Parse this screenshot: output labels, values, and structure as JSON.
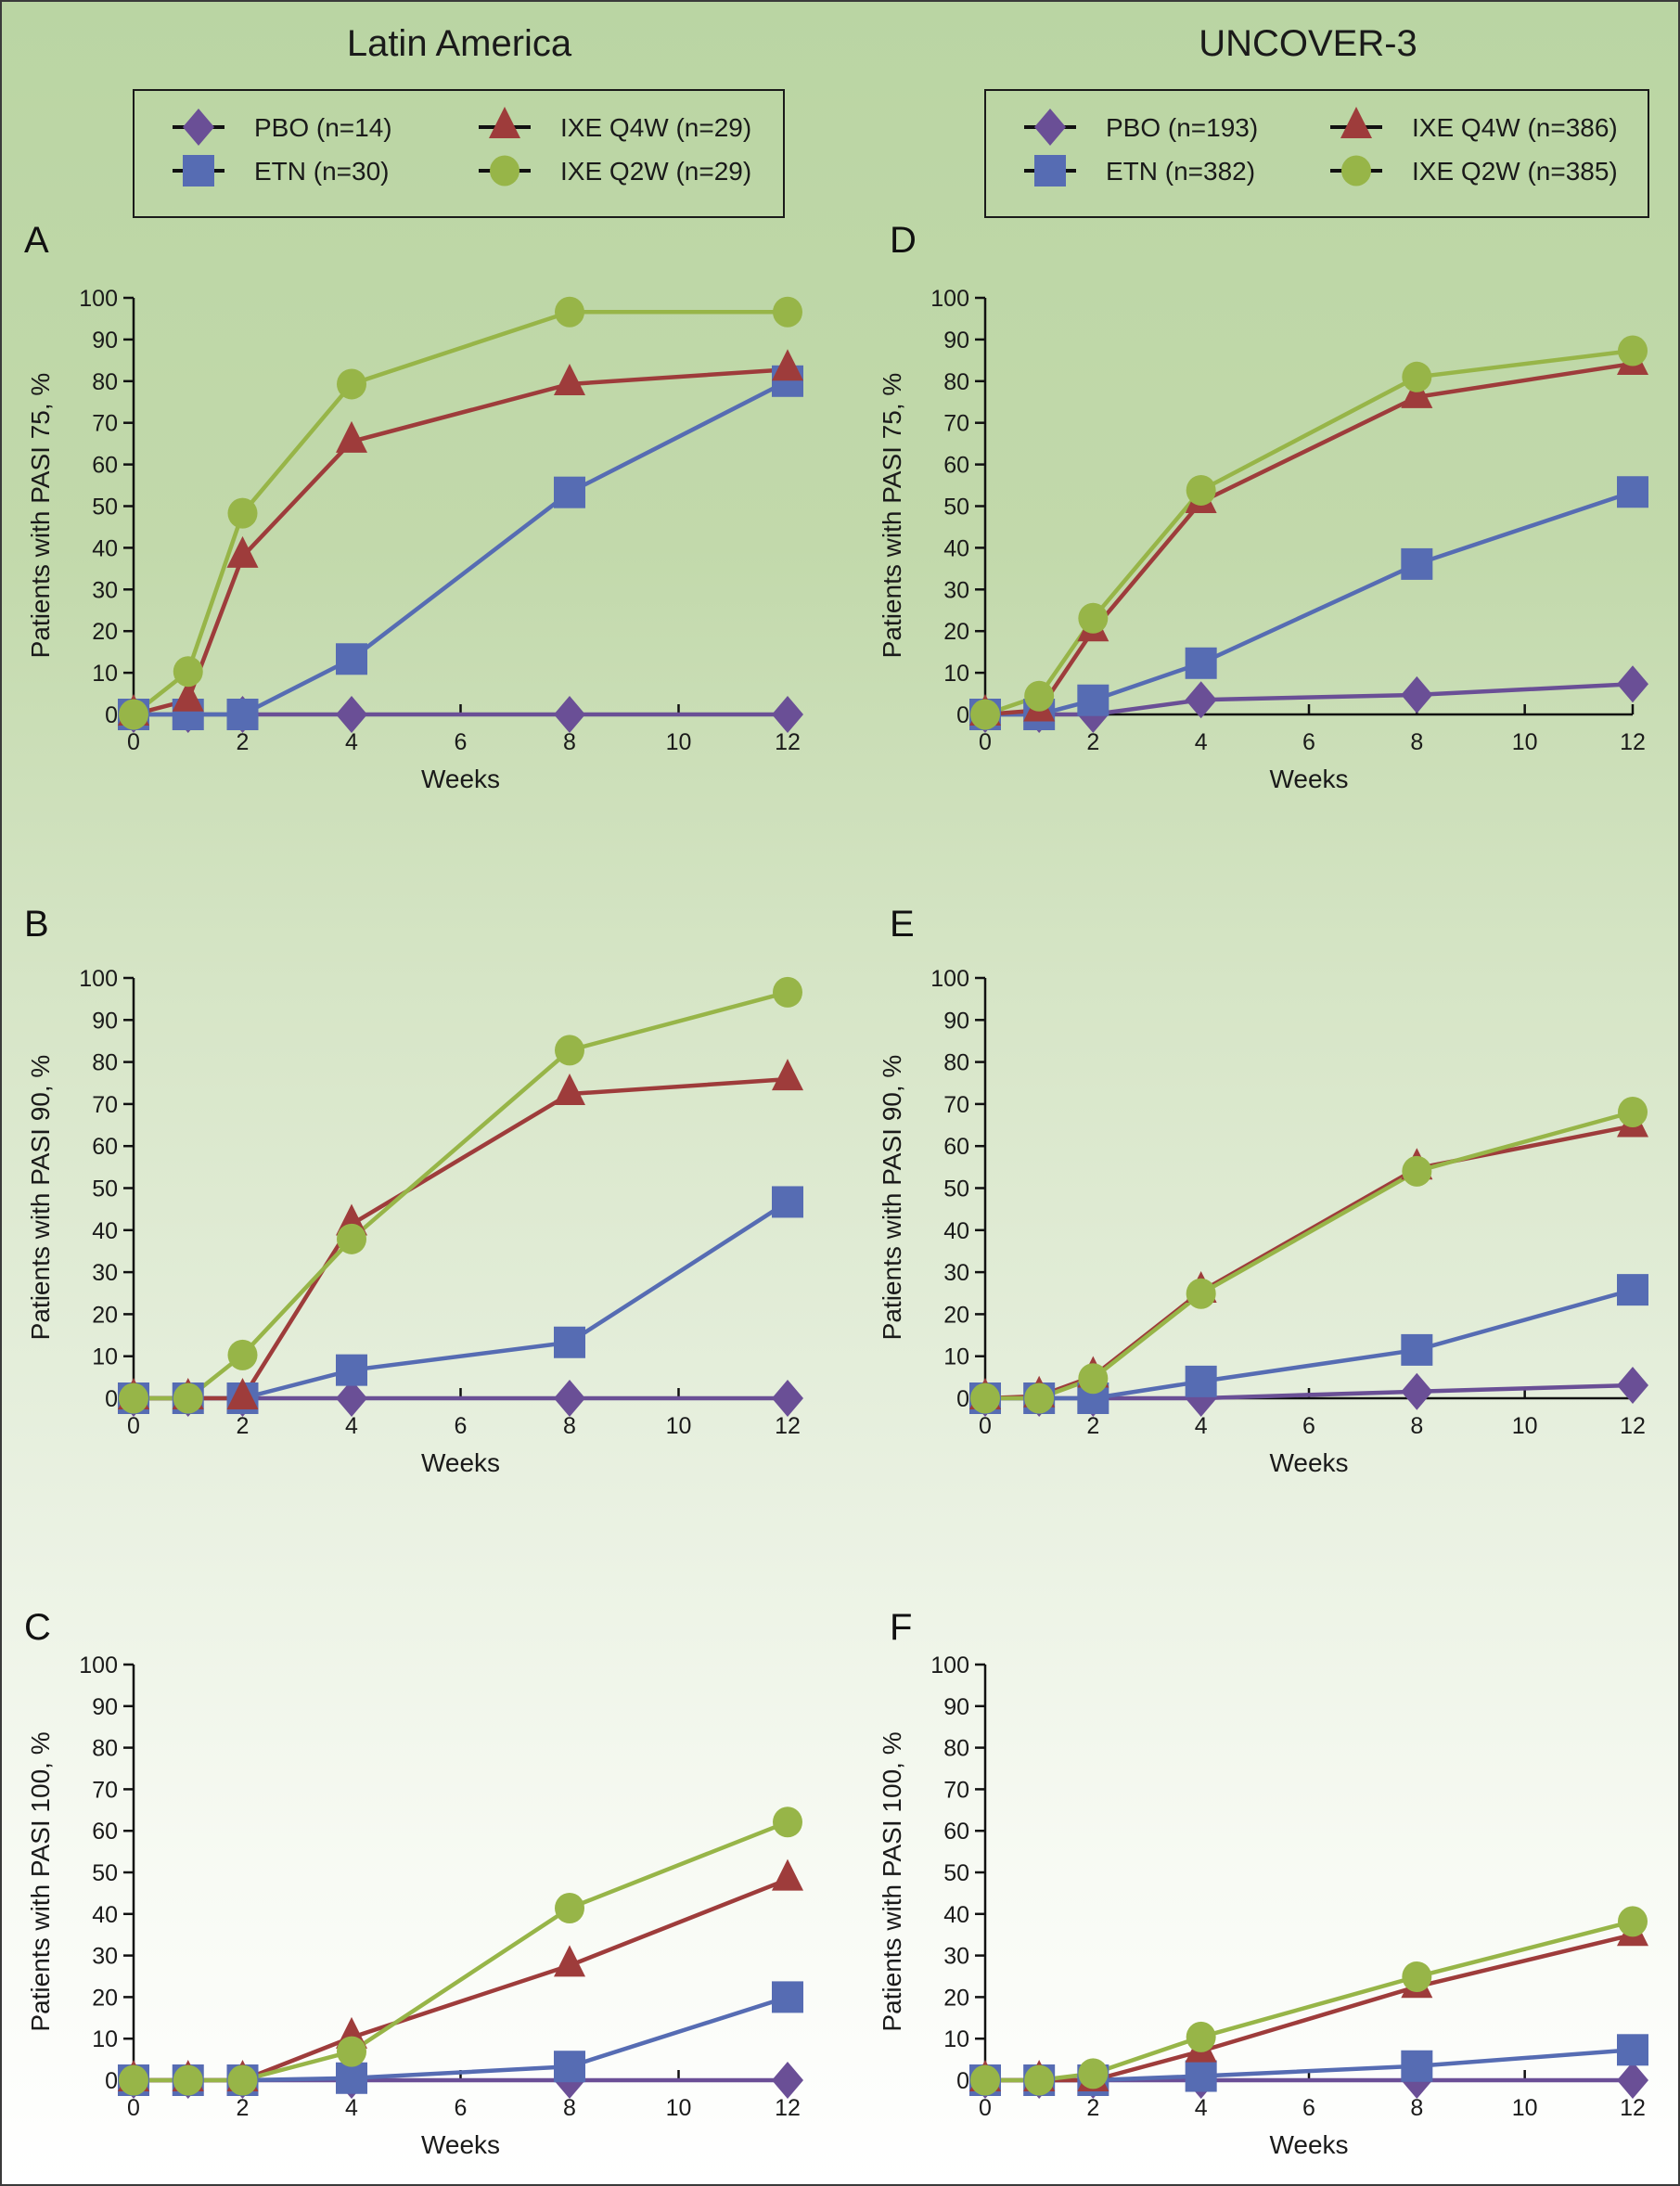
{
  "column_titles": [
    "Latin America",
    "UNCOVER-3"
  ],
  "legends": [
    {
      "items": [
        {
          "series": "PBO",
          "label": "PBO (n=14)"
        },
        {
          "series": "ETN",
          "label": "ETN (n=30)"
        },
        {
          "series": "IXE_Q4W",
          "label": "IXE Q4W (n=29)"
        },
        {
          "series": "IXE_Q2W",
          "label": "IXE Q2W (n=29)"
        }
      ]
    },
    {
      "items": [
        {
          "series": "PBO",
          "label": "PBO (n=193)"
        },
        {
          "series": "ETN",
          "label": "ETN (n=382)"
        },
        {
          "series": "IXE_Q4W",
          "label": "IXE Q4W (n=386)"
        },
        {
          "series": "IXE_Q2W",
          "label": "IXE Q2W (n=385)"
        }
      ]
    }
  ],
  "series_style": {
    "PBO": {
      "color": "#6a4f96",
      "marker": "diamond"
    },
    "ETN": {
      "color": "#566cb3",
      "marker": "square"
    },
    "IXE_Q4W": {
      "color": "#9e3c3b",
      "marker": "triangle"
    },
    "IXE_Q2W": {
      "color": "#97b548",
      "marker": "circle"
    }
  },
  "chart_data": [
    {
      "panel": "A",
      "type": "line",
      "column": "Latin America",
      "xlabel": "Weeks",
      "ylabel": "Patients with PASI 75, %",
      "xlim": [
        0,
        12
      ],
      "ylim": [
        0,
        100
      ],
      "xticks": [
        0,
        2,
        4,
        6,
        8,
        10,
        12
      ],
      "yticks": [
        0,
        10,
        20,
        30,
        40,
        50,
        60,
        70,
        80,
        90,
        100
      ],
      "series": [
        {
          "name": "PBO",
          "x": [
            0,
            1,
            2,
            4,
            8,
            12
          ],
          "values": [
            0,
            0,
            0,
            0,
            0,
            0
          ]
        },
        {
          "name": "ETN",
          "x": [
            0,
            1,
            2,
            4,
            8,
            12
          ],
          "values": [
            0,
            0,
            0,
            13.3,
            53.3,
            80.0
          ]
        },
        {
          "name": "IXE_Q4W",
          "x": [
            0,
            1,
            2,
            4,
            8,
            12
          ],
          "values": [
            0,
            3.4,
            37.9,
            65.5,
            79.3,
            82.8
          ]
        },
        {
          "name": "IXE_Q2W",
          "x": [
            0,
            1,
            2,
            4,
            8,
            12
          ],
          "values": [
            0,
            10.3,
            48.3,
            79.3,
            96.6,
            96.6
          ]
        }
      ]
    },
    {
      "panel": "B",
      "type": "line",
      "column": "Latin America",
      "xlabel": "Weeks",
      "ylabel": "Patients with PASI 90, %",
      "xlim": [
        0,
        12
      ],
      "ylim": [
        0,
        100
      ],
      "xticks": [
        0,
        2,
        4,
        6,
        8,
        10,
        12
      ],
      "yticks": [
        0,
        10,
        20,
        30,
        40,
        50,
        60,
        70,
        80,
        90,
        100
      ],
      "series": [
        {
          "name": "PBO",
          "x": [
            0,
            1,
            2,
            4,
            8,
            12
          ],
          "values": [
            0,
            0,
            0,
            0,
            0,
            0
          ]
        },
        {
          "name": "ETN",
          "x": [
            0,
            1,
            2,
            4,
            8,
            12
          ],
          "values": [
            0,
            0,
            0,
            6.7,
            13.3,
            46.7
          ]
        },
        {
          "name": "IXE_Q4W",
          "x": [
            0,
            1,
            2,
            4,
            8,
            12
          ],
          "values": [
            0,
            0,
            0,
            41.4,
            72.4,
            75.9
          ]
        },
        {
          "name": "IXE_Q2W",
          "x": [
            0,
            1,
            2,
            4,
            8,
            12
          ],
          "values": [
            0,
            0,
            10.3,
            37.9,
            82.8,
            96.6
          ]
        }
      ]
    },
    {
      "panel": "C",
      "type": "line",
      "column": "Latin America",
      "xlabel": "Weeks",
      "ylabel": "Patients with PASI 100, %",
      "xlim": [
        0,
        12
      ],
      "ylim": [
        0,
        100
      ],
      "xticks": [
        0,
        2,
        4,
        6,
        8,
        10,
        12
      ],
      "yticks": [
        0,
        10,
        20,
        30,
        40,
        50,
        60,
        70,
        80,
        90,
        100
      ],
      "series": [
        {
          "name": "PBO",
          "x": [
            0,
            1,
            2,
            4,
            8,
            12
          ],
          "values": [
            0,
            0,
            0,
            0,
            0,
            0
          ]
        },
        {
          "name": "ETN",
          "x": [
            0,
            1,
            2,
            4,
            8,
            12
          ],
          "values": [
            0,
            0,
            0,
            0.5,
            3.3,
            20.0
          ]
        },
        {
          "name": "IXE_Q4W",
          "x": [
            0,
            1,
            2,
            4,
            8,
            12
          ],
          "values": [
            0,
            0,
            0,
            10.3,
            27.6,
            48.3
          ]
        },
        {
          "name": "IXE_Q2W",
          "x": [
            0,
            1,
            2,
            4,
            8,
            12
          ],
          "values": [
            0,
            0,
            0,
            6.9,
            41.4,
            62.1
          ]
        }
      ]
    },
    {
      "panel": "D",
      "type": "line",
      "column": "UNCOVER-3",
      "xlabel": "Weeks",
      "ylabel": "Patients with PASI 75, %",
      "xlim": [
        0,
        12
      ],
      "ylim": [
        0,
        100
      ],
      "xticks": [
        0,
        2,
        4,
        6,
        8,
        10,
        12
      ],
      "yticks": [
        0,
        10,
        20,
        30,
        40,
        50,
        60,
        70,
        80,
        90,
        100
      ],
      "series": [
        {
          "name": "PBO",
          "x": [
            0,
            1,
            2,
            4,
            8,
            12
          ],
          "values": [
            0,
            0,
            0,
            3.5,
            4.7,
            7.3
          ]
        },
        {
          "name": "ETN",
          "x": [
            0,
            1,
            2,
            4,
            8,
            12
          ],
          "values": [
            0,
            0,
            3.4,
            12.3,
            36.1,
            53.4
          ]
        },
        {
          "name": "IXE_Q4W",
          "x": [
            0,
            1,
            2,
            4,
            8,
            12
          ],
          "values": [
            0,
            1.0,
            20.2,
            51.0,
            76.2,
            84.2
          ]
        },
        {
          "name": "IXE_Q2W",
          "x": [
            0,
            1,
            2,
            4,
            8,
            12
          ],
          "values": [
            0,
            4.4,
            23.1,
            53.8,
            81.0,
            87.3
          ]
        }
      ]
    },
    {
      "panel": "E",
      "type": "line",
      "column": "UNCOVER-3",
      "xlabel": "Weeks",
      "ylabel": "Patients with PASI 90, %",
      "xlim": [
        0,
        12
      ],
      "ylim": [
        0,
        100
      ],
      "xticks": [
        0,
        2,
        4,
        6,
        8,
        10,
        12
      ],
      "yticks": [
        0,
        10,
        20,
        30,
        40,
        50,
        60,
        70,
        80,
        90,
        100
      ],
      "series": [
        {
          "name": "PBO",
          "x": [
            0,
            1,
            2,
            4,
            8,
            12
          ],
          "values": [
            0,
            0,
            0,
            0,
            1.6,
            3.1
          ]
        },
        {
          "name": "ETN",
          "x": [
            0,
            1,
            2,
            4,
            8,
            12
          ],
          "values": [
            0,
            0,
            0,
            4.0,
            11.5,
            25.8
          ]
        },
        {
          "name": "IXE_Q4W",
          "x": [
            0,
            1,
            2,
            4,
            8,
            12
          ],
          "values": [
            0,
            0.5,
            5.2,
            25.4,
            54.7,
            64.8
          ]
        },
        {
          "name": "IXE_Q2W",
          "x": [
            0,
            1,
            2,
            4,
            8,
            12
          ],
          "values": [
            0,
            0,
            4.7,
            24.9,
            54.0,
            68.1
          ]
        }
      ]
    },
    {
      "panel": "F",
      "type": "line",
      "column": "UNCOVER-3",
      "xlabel": "Weeks",
      "ylabel": "Patients with PASI 100, %",
      "xlim": [
        0,
        12
      ],
      "ylim": [
        0,
        100
      ],
      "xticks": [
        0,
        2,
        4,
        6,
        8,
        10,
        12
      ],
      "yticks": [
        0,
        10,
        20,
        30,
        40,
        50,
        60,
        70,
        80,
        90,
        100
      ],
      "series": [
        {
          "name": "PBO",
          "x": [
            0,
            1,
            2,
            4,
            8,
            12
          ],
          "values": [
            0,
            0,
            0,
            0,
            0,
            0
          ]
        },
        {
          "name": "ETN",
          "x": [
            0,
            1,
            2,
            4,
            8,
            12
          ],
          "values": [
            0,
            0,
            0,
            1.0,
            3.4,
            7.3
          ]
        },
        {
          "name": "IXE_Q4W",
          "x": [
            0,
            1,
            2,
            4,
            8,
            12
          ],
          "values": [
            0,
            0,
            0,
            7.0,
            22.5,
            35.0
          ]
        },
        {
          "name": "IXE_Q2W",
          "x": [
            0,
            1,
            2,
            4,
            8,
            12
          ],
          "values": [
            0,
            0,
            1.6,
            10.4,
            24.9,
            38.2
          ]
        }
      ]
    }
  ]
}
